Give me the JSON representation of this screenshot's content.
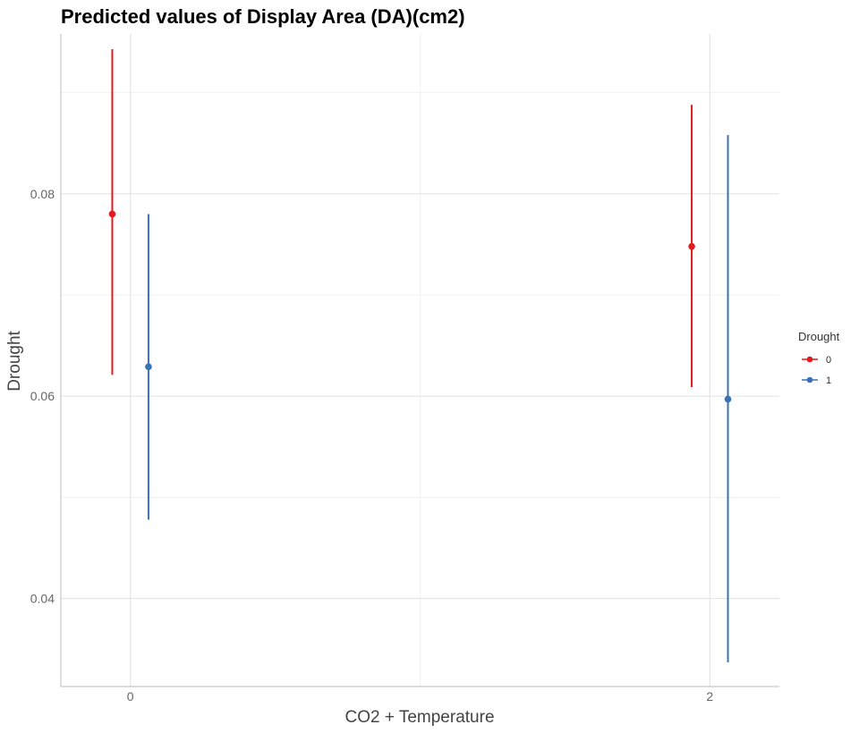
{
  "chart_data": {
    "type": "scatter",
    "title": "Predicted values of Display Area (DA)(cm2)",
    "xlabel": "CO2 + Temperature",
    "ylabel": "Drought",
    "x_ticks": [
      0,
      2
    ],
    "x_tick_labels": [
      "0",
      "2"
    ],
    "xlim": [
      -0.24,
      2.24
    ],
    "ylim": [
      0.0313,
      0.0958
    ],
    "y_ticks": [
      0.04,
      0.06,
      0.08
    ],
    "y_tick_labels": [
      "0.04",
      "0.06",
      "0.08"
    ],
    "y_minor_ticks": [
      0.05,
      0.07,
      0.09
    ],
    "grid": true,
    "legend": {
      "title": "Drought",
      "placement": "right"
    },
    "series": [
      {
        "name": "0",
        "color": "#e41a1c",
        "points": [
          {
            "x": 0,
            "y": 0.078,
            "low": 0.0621,
            "high": 0.0943
          },
          {
            "x": 2,
            "y": 0.0748,
            "low": 0.0609,
            "high": 0.0888
          }
        ]
      },
      {
        "name": "1",
        "color": "#3a73b5",
        "points": [
          {
            "x": 0,
            "y": 0.0629,
            "low": 0.0478,
            "high": 0.078
          },
          {
            "x": 2,
            "y": 0.0597,
            "low": 0.0337,
            "high": 0.0858
          }
        ]
      }
    ]
  }
}
